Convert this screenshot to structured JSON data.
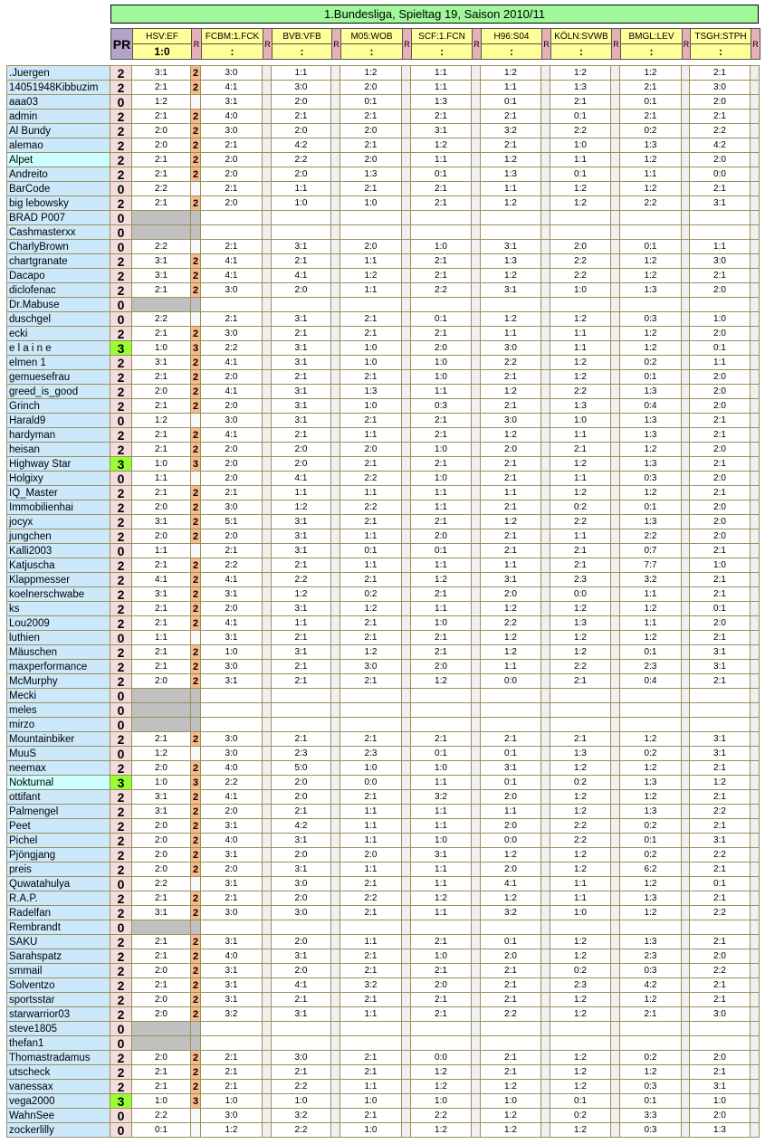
{
  "title": "1.Bundesliga, Spieltag 19, Saison 2010/11",
  "header": {
    "pr_label": "PR",
    "r_label": "R",
    "matches": [
      {
        "teams": "HSV:EF",
        "result": "1:0"
      },
      {
        "teams": "FCBM:1.FCK",
        "result": ":"
      },
      {
        "teams": "BVB:VFB",
        "result": ":"
      },
      {
        "teams": "M05:WOB",
        "result": ":"
      },
      {
        "teams": "SCF:1.FCN",
        "result": ":"
      },
      {
        "teams": "H96:S04",
        "result": ":"
      },
      {
        "teams": "KÖLN:SVWB",
        "result": ":"
      },
      {
        "teams": "BMGL:LEV",
        "result": ":"
      },
      {
        "teams": "TSGH:STPH",
        "result": ":"
      }
    ]
  },
  "colors": {
    "title_bg": "#a0f89a",
    "header_match_bg": "#ffff99",
    "pr_header_bg": "#b3a3c8",
    "name_bg": "#cce9fb",
    "points_bg": "#f5dcdc",
    "top_points_bg": "#99ff33",
    "r_points_bg": "#f9b98a",
    "no_tip_bg": "#c0c0c0"
  },
  "rows": [
    {
      "name": ".Juergen",
      "points": "2",
      "r1": "2",
      "tips": [
        "3:1",
        "3:0",
        "1:1",
        "1:2",
        "1:1",
        "1:2",
        "1:2",
        "1:2",
        "2:1"
      ]
    },
    {
      "name": "14051948Kibbuzim",
      "points": "2",
      "r1": "2",
      "tips": [
        "2:1",
        "4:1",
        "3:0",
        "2:0",
        "1:1",
        "1:1",
        "1:3",
        "2:1",
        "3:0"
      ]
    },
    {
      "name": "aaa03",
      "points": "0",
      "r1": "",
      "tips": [
        "1:2",
        "3:1",
        "2:0",
        "0:1",
        "1:3",
        "0:1",
        "2:1",
        "0:1",
        "2:0"
      ]
    },
    {
      "name": "admin",
      "points": "2",
      "r1": "2",
      "tips": [
        "2:1",
        "4:0",
        "2:1",
        "2:1",
        "2:1",
        "2:1",
        "0:1",
        "2:1",
        "2:1"
      ]
    },
    {
      "name": "Al Bundy",
      "points": "2",
      "r1": "2",
      "tips": [
        "2:0",
        "3:0",
        "2:0",
        "2:0",
        "3:1",
        "3:2",
        "2:2",
        "0:2",
        "2:2"
      ]
    },
    {
      "name": "alemao",
      "points": "2",
      "r1": "2",
      "tips": [
        "2:0",
        "2:1",
        "4:2",
        "2:1",
        "1:2",
        "2:1",
        "1:0",
        "1:3",
        "4:2"
      ]
    },
    {
      "name": "Alpet",
      "points": "2",
      "r1": "2",
      "highlighted": true,
      "tips": [
        "2:1",
        "2:0",
        "2:2",
        "2:0",
        "1:1",
        "1:2",
        "1:1",
        "1:2",
        "2:0"
      ]
    },
    {
      "name": "Andreito",
      "points": "2",
      "r1": "2",
      "tips": [
        "2:1",
        "2:0",
        "2:0",
        "1:3",
        "0:1",
        "1:3",
        "0:1",
        "1:1",
        "0:0"
      ]
    },
    {
      "name": "BarCode",
      "points": "0",
      "r1": "",
      "tips": [
        "2:2",
        "2:1",
        "1:1",
        "2:1",
        "2:1",
        "1:1",
        "1:2",
        "1:2",
        "2:1"
      ]
    },
    {
      "name": "big lebowsky",
      "points": "2",
      "r1": "2",
      "tips": [
        "2:1",
        "2:0",
        "1:0",
        "1:0",
        "2:1",
        "1:2",
        "1:2",
        "2:2",
        "3:1"
      ]
    },
    {
      "name": "BRAD P007",
      "points": "0",
      "r1": "",
      "tips": []
    },
    {
      "name": "Cashmasterxx",
      "points": "0",
      "r1": "",
      "tips": []
    },
    {
      "name": "CharlyBrown",
      "points": "0",
      "r1": "",
      "tips": [
        "2:2",
        "2:1",
        "3:1",
        "2:0",
        "1:0",
        "3:1",
        "2:0",
        "0:1",
        "1:1"
      ]
    },
    {
      "name": "chartgranate",
      "points": "2",
      "r1": "2",
      "tips": [
        "3:1",
        "4:1",
        "2:1",
        "1:1",
        "2:1",
        "1:3",
        "2:2",
        "1:2",
        "3:0"
      ]
    },
    {
      "name": "Dacapo",
      "points": "2",
      "r1": "2",
      "tips": [
        "3:1",
        "4:1",
        "4:1",
        "1:2",
        "2:1",
        "1:2",
        "2:2",
        "1:2",
        "2:1"
      ]
    },
    {
      "name": "diclofenac",
      "points": "2",
      "r1": "2",
      "tips": [
        "2:1",
        "3:0",
        "2:0",
        "1:1",
        "2:2",
        "3:1",
        "1:0",
        "1:3",
        "2:0"
      ]
    },
    {
      "name": "Dr.Mabuse",
      "points": "0",
      "r1": "",
      "tips": []
    },
    {
      "name": "duschgel",
      "points": "0",
      "r1": "",
      "tips": [
        "2:2",
        "2:1",
        "3:1",
        "2:1",
        "0:1",
        "1:2",
        "1:2",
        "0:3",
        "1:0"
      ]
    },
    {
      "name": "ecki",
      "points": "2",
      "r1": "2",
      "tips": [
        "2:1",
        "3:0",
        "2:1",
        "2:1",
        "2:1",
        "1:1",
        "1:1",
        "1:2",
        "2:0"
      ]
    },
    {
      "name": "e l a i n e",
      "points": "3",
      "r1": "3",
      "tips": [
        "1:0",
        "2:2",
        "3:1",
        "1:0",
        "2:0",
        "3:0",
        "1:1",
        "1:2",
        "0:1"
      ]
    },
    {
      "name": "elmen 1",
      "points": "2",
      "r1": "2",
      "tips": [
        "3:1",
        "4:1",
        "3:1",
        "1:0",
        "1:0",
        "2:2",
        "1:2",
        "0:2",
        "1:1"
      ]
    },
    {
      "name": "gemuesefrau",
      "points": "2",
      "r1": "2",
      "tips": [
        "2:1",
        "2:0",
        "2:1",
        "2:1",
        "1:0",
        "2:1",
        "1:2",
        "0:1",
        "2:0"
      ]
    },
    {
      "name": "greed_is_good",
      "points": "2",
      "r1": "2",
      "tips": [
        "2:0",
        "4:1",
        "3:1",
        "1:3",
        "1:1",
        "1:2",
        "2:2",
        "1:3",
        "2:0"
      ]
    },
    {
      "name": "Grinch",
      "points": "2",
      "r1": "2",
      "tips": [
        "2:1",
        "2:0",
        "3:1",
        "1:0",
        "0:3",
        "2:1",
        "1:3",
        "0:4",
        "2:0"
      ]
    },
    {
      "name": "Harald9",
      "points": "0",
      "r1": "",
      "tips": [
        "1:2",
        "3:0",
        "3:1",
        "2:1",
        "2:1",
        "3:0",
        "1:0",
        "1:3",
        "2:1"
      ]
    },
    {
      "name": "hardyman",
      "points": "2",
      "r1": "2",
      "tips": [
        "2:1",
        "4:1",
        "2:1",
        "1:1",
        "2:1",
        "1:2",
        "1:1",
        "1:3",
        "2:1"
      ]
    },
    {
      "name": "heisan",
      "points": "2",
      "r1": "2",
      "tips": [
        "2:1",
        "2:0",
        "2:0",
        "2:0",
        "1:0",
        "2:0",
        "2:1",
        "1:2",
        "2:0"
      ]
    },
    {
      "name": "Highway Star",
      "points": "3",
      "r1": "3",
      "tips": [
        "1:0",
        "2:0",
        "2:0",
        "2:1",
        "2:1",
        "2:1",
        "1:2",
        "1:3",
        "2:1"
      ]
    },
    {
      "name": "Holgixy",
      "points": "0",
      "r1": "",
      "tips": [
        "1:1",
        "2:0",
        "4:1",
        "2:2",
        "1:0",
        "2:1",
        "1:1",
        "0:3",
        "2:0"
      ]
    },
    {
      "name": "IQ_Master",
      "points": "2",
      "r1": "2",
      "tips": [
        "2:1",
        "2:1",
        "1:1",
        "1:1",
        "1:1",
        "1:1",
        "1:2",
        "1:2",
        "2:1"
      ]
    },
    {
      "name": "Immobilienhai",
      "points": "2",
      "r1": "2",
      "tips": [
        "2:0",
        "3:0",
        "1:2",
        "2:2",
        "1:1",
        "2:1",
        "0:2",
        "0:1",
        "2:0"
      ]
    },
    {
      "name": "jocyx",
      "points": "2",
      "r1": "2",
      "tips": [
        "3:1",
        "5:1",
        "3:1",
        "2:1",
        "2:1",
        "1:2",
        "2:2",
        "1:3",
        "2:0"
      ]
    },
    {
      "name": "jungchen",
      "points": "2",
      "r1": "2",
      "tips": [
        "2:0",
        "2:0",
        "3:1",
        "1:1",
        "2:0",
        "2:1",
        "1:1",
        "2:2",
        "2:0"
      ]
    },
    {
      "name": "Kalli2003",
      "points": "0",
      "r1": "",
      "tips": [
        "1:1",
        "2:1",
        "3:1",
        "0:1",
        "0:1",
        "2:1",
        "2:1",
        "0:7",
        "2:1"
      ]
    },
    {
      "name": "Katjuscha",
      "points": "2",
      "r1": "2",
      "tips": [
        "2:1",
        "2:2",
        "2:1",
        "1:1",
        "1:1",
        "1:1",
        "2:1",
        "7:7",
        "1:0"
      ]
    },
    {
      "name": "Klappmesser",
      "points": "2",
      "r1": "2",
      "tips": [
        "4:1",
        "4:1",
        "2:2",
        "2:1",
        "1:2",
        "3:1",
        "2:3",
        "3:2",
        "2:1"
      ]
    },
    {
      "name": "koelnerschwabe",
      "points": "2",
      "r1": "2",
      "tips": [
        "3:1",
        "3:1",
        "1:2",
        "0:2",
        "2:1",
        "2:0",
        "0:0",
        "1:1",
        "2:1"
      ]
    },
    {
      "name": "ks",
      "points": "2",
      "r1": "2",
      "tips": [
        "2:1",
        "2:0",
        "3:1",
        "1:2",
        "1:1",
        "1:2",
        "1:2",
        "1:2",
        "0:1"
      ]
    },
    {
      "name": "Lou2009",
      "points": "2",
      "r1": "2",
      "tips": [
        "2:1",
        "4:1",
        "1:1",
        "2:1",
        "1:0",
        "2:2",
        "1:3",
        "1:1",
        "2:0"
      ]
    },
    {
      "name": "luthien",
      "points": "0",
      "r1": "",
      "tips": [
        "1:1",
        "3:1",
        "2:1",
        "2:1",
        "2:1",
        "1:2",
        "1:2",
        "1:2",
        "2:1"
      ]
    },
    {
      "name": "Mäuschen",
      "points": "2",
      "r1": "2",
      "tips": [
        "2:1",
        "1:0",
        "3:1",
        "1:2",
        "2:1",
        "1:2",
        "1:2",
        "0:1",
        "3:1"
      ]
    },
    {
      "name": "maxperformance",
      "points": "2",
      "r1": "2",
      "tips": [
        "2:1",
        "3:0",
        "2:1",
        "3:0",
        "2:0",
        "1:1",
        "2:2",
        "2:3",
        "3:1"
      ]
    },
    {
      "name": "McMurphy",
      "points": "2",
      "r1": "2",
      "tips": [
        "2:0",
        "3:1",
        "2:1",
        "2:1",
        "1:2",
        "0:0",
        "2:1",
        "0:4",
        "2:1"
      ]
    },
    {
      "name": "Mecki",
      "points": "0",
      "r1": "",
      "tips": []
    },
    {
      "name": "meles",
      "points": "0",
      "r1": "",
      "tips": []
    },
    {
      "name": "mirzo",
      "points": "0",
      "r1": "",
      "tips": []
    },
    {
      "name": "Mountainbiker",
      "points": "2",
      "r1": "2",
      "tips": [
        "2:1",
        "3:0",
        "2:1",
        "2:1",
        "2:1",
        "2:1",
        "2:1",
        "1:2",
        "3:1"
      ]
    },
    {
      "name": "MuuS",
      "points": "0",
      "r1": "",
      "tips": [
        "1:2",
        "3:0",
        "2:3",
        "2:3",
        "0:1",
        "0:1",
        "1:3",
        "0:2",
        "3:1"
      ]
    },
    {
      "name": "neemax",
      "points": "2",
      "r1": "2",
      "tips": [
        "2:0",
        "4:0",
        "5:0",
        "1:0",
        "1:0",
        "3:1",
        "1:2",
        "1:2",
        "2:1"
      ]
    },
    {
      "name": "Nokturnal",
      "points": "3",
      "r1": "3",
      "highlighted": true,
      "tips": [
        "1:0",
        "2:2",
        "2:0",
        "0:0",
        "1:1",
        "0:1",
        "0:2",
        "1:3",
        "1:2"
      ]
    },
    {
      "name": "ottifant",
      "points": "2",
      "r1": "2",
      "tips": [
        "3:1",
        "4:1",
        "2:0",
        "2:1",
        "3:2",
        "2:0",
        "1:2",
        "1:2",
        "2:1"
      ]
    },
    {
      "name": "Palmengel",
      "points": "2",
      "r1": "2",
      "tips": [
        "3:1",
        "2:0",
        "2:1",
        "1:1",
        "1:1",
        "1:1",
        "1:2",
        "1:3",
        "2:2"
      ]
    },
    {
      "name": "Peet",
      "points": "2",
      "r1": "2",
      "tips": [
        "2:0",
        "3:1",
        "4:2",
        "1:1",
        "1:1",
        "2:0",
        "2:2",
        "0:2",
        "2:1"
      ]
    },
    {
      "name": "Pichel",
      "points": "2",
      "r1": "2",
      "tips": [
        "2:0",
        "4:0",
        "3:1",
        "1:1",
        "1:0",
        "0:0",
        "2:2",
        "0:1",
        "3:1"
      ]
    },
    {
      "name": "Pjöngjang",
      "points": "2",
      "r1": "2",
      "tips": [
        "2:0",
        "3:1",
        "2:0",
        "2:0",
        "3:1",
        "1:2",
        "1:2",
        "0:2",
        "2:2"
      ]
    },
    {
      "name": "preis",
      "points": "2",
      "r1": "2",
      "tips": [
        "2:0",
        "2:0",
        "3:1",
        "1:1",
        "1:1",
        "2:0",
        "1:2",
        "6:2",
        "2:1"
      ]
    },
    {
      "name": "Quwatahulya",
      "points": "0",
      "r1": "",
      "tips": [
        "2:2",
        "3:1",
        "3:0",
        "2:1",
        "1:1",
        "4:1",
        "1:1",
        "1:2",
        "0:1"
      ]
    },
    {
      "name": "R.A.P.",
      "points": "2",
      "r1": "2",
      "tips": [
        "2:1",
        "2:1",
        "2:0",
        "2:2",
        "1:2",
        "1:2",
        "1:1",
        "1:3",
        "2:1"
      ]
    },
    {
      "name": "Radelfan",
      "points": "2",
      "r1": "2",
      "tips": [
        "3:1",
        "3:0",
        "3:0",
        "2:1",
        "1:1",
        "3:2",
        "1:0",
        "1:2",
        "2:2"
      ]
    },
    {
      "name": "Rembrandt",
      "points": "0",
      "r1": "",
      "tips": []
    },
    {
      "name": "SAKU",
      "points": "2",
      "r1": "2",
      "tips": [
        "2:1",
        "3:1",
        "2:0",
        "1:1",
        "2:1",
        "0:1",
        "1:2",
        "1:3",
        "2:1"
      ]
    },
    {
      "name": "Sarahspatz",
      "points": "2",
      "r1": "2",
      "tips": [
        "2:1",
        "4:0",
        "3:1",
        "2:1",
        "1:0",
        "2:0",
        "1:2",
        "2:3",
        "2:0"
      ]
    },
    {
      "name": "smmail",
      "points": "2",
      "r1": "2",
      "tips": [
        "2:0",
        "3:1",
        "2:0",
        "2:1",
        "2:1",
        "2:1",
        "0:2",
        "0:3",
        "2:2"
      ]
    },
    {
      "name": "Solventzo",
      "points": "2",
      "r1": "2",
      "tips": [
        "2:1",
        "3:1",
        "4:1",
        "3:2",
        "2:0",
        "2:1",
        "2:3",
        "4:2",
        "2:1"
      ]
    },
    {
      "name": "sportsstar",
      "points": "2",
      "r1": "2",
      "tips": [
        "2:0",
        "3:1",
        "2:1",
        "2:1",
        "2:1",
        "2:1",
        "1:2",
        "1:2",
        "2:1"
      ]
    },
    {
      "name": "starwarrior03",
      "points": "2",
      "r1": "2",
      "tips": [
        "2:0",
        "3:2",
        "3:1",
        "1:1",
        "2:1",
        "2:2",
        "1:2",
        "2:1",
        "3:0"
      ]
    },
    {
      "name": "steve1805",
      "points": "0",
      "r1": "",
      "tips": []
    },
    {
      "name": "thefan1",
      "points": "0",
      "r1": "",
      "tips": []
    },
    {
      "name": "Thomastradamus",
      "points": "2",
      "r1": "2",
      "tips": [
        "2:0",
        "2:1",
        "3:0",
        "2:1",
        "0:0",
        "2:1",
        "1:2",
        "0:2",
        "2:0"
      ]
    },
    {
      "name": "utscheck",
      "points": "2",
      "r1": "2",
      "tips": [
        "2:1",
        "2:1",
        "2:1",
        "2:1",
        "1:2",
        "2:1",
        "1:2",
        "1:2",
        "2:1"
      ]
    },
    {
      "name": "vanessax",
      "points": "2",
      "r1": "2",
      "tips": [
        "2:1",
        "2:1",
        "2:2",
        "1:1",
        "1:2",
        "1:2",
        "1:2",
        "0:3",
        "3:1"
      ]
    },
    {
      "name": "vega2000",
      "points": "3",
      "r1": "3",
      "tips": [
        "1:0",
        "1:0",
        "1:0",
        "1:0",
        "1:0",
        "1:0",
        "0:1",
        "0:1",
        "1:0"
      ]
    },
    {
      "name": "WahnSee",
      "points": "0",
      "r1": "",
      "tips": [
        "2:2",
        "3:0",
        "3:2",
        "2:1",
        "2:2",
        "1:2",
        "0:2",
        "3:3",
        "2:0"
      ]
    },
    {
      "name": "zockerlilly",
      "points": "0",
      "r1": "",
      "tips": [
        "0:1",
        "1:2",
        "2:2",
        "1:0",
        "1:2",
        "1:2",
        "1:2",
        "0:3",
        "1:3"
      ]
    }
  ]
}
